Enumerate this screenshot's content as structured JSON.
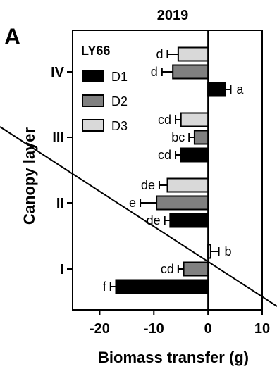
{
  "chart_data": {
    "type": "bar",
    "orientation": "horizontal",
    "panel_label": "A",
    "title": "2019",
    "xlabel": "Biomass transfer (g)",
    "ylabel": "Canopy layer",
    "xlim": [
      -25,
      10
    ],
    "xticks": [
      -20,
      -10,
      0,
      10
    ],
    "categories": [
      "IV",
      "III",
      "II",
      "I"
    ],
    "legend": {
      "title": "LY66",
      "placement": "top-left",
      "entries": [
        "D1",
        "D2",
        "D3"
      ]
    },
    "colors": {
      "D1": "#000000",
      "D2": "#808080",
      "D3": "#d9d9d9"
    },
    "series": [
      {
        "name": "D1",
        "values": [
          3.2,
          -5.0,
          -7.0,
          -17.0
        ],
        "errors": [
          1.0,
          1.0,
          1.0,
          1.0
        ],
        "labels": [
          "a",
          "cd",
          "de",
          "f"
        ]
      },
      {
        "name": "D2",
        "values": [
          -6.5,
          -2.5,
          -9.5,
          -4.5
        ],
        "errors": [
          2.0,
          1.0,
          3.0,
          1.0
        ],
        "labels": [
          "d",
          "bc",
          "e",
          "cd"
        ]
      },
      {
        "name": "D3",
        "values": [
          -5.5,
          -5.0,
          -7.5,
          0.5
        ],
        "errors": [
          2.0,
          1.0,
          1.5,
          1.5
        ],
        "labels": [
          "d",
          "cd",
          "de",
          "b"
        ]
      }
    ]
  }
}
